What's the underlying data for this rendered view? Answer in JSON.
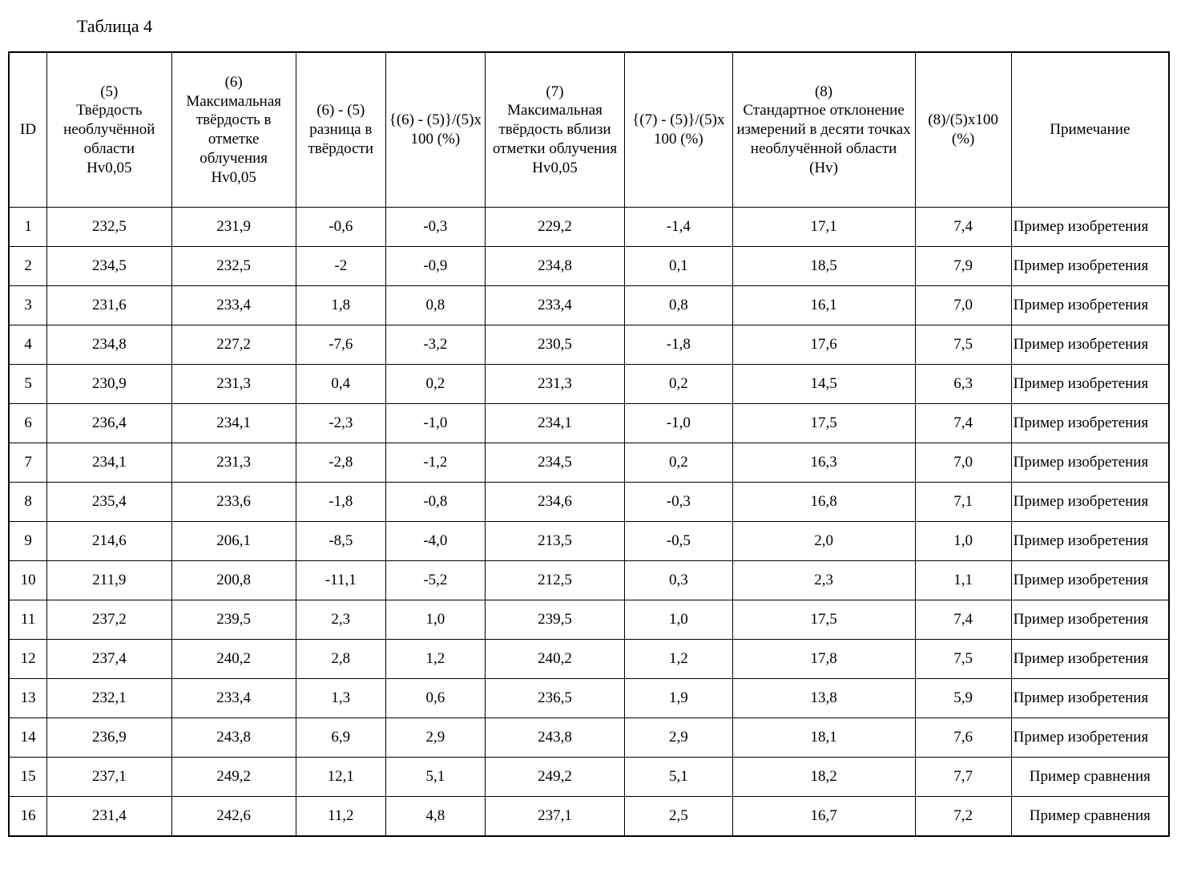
{
  "caption": "Таблица 4",
  "table": {
    "columns": [
      {
        "key": "id",
        "header": "ID",
        "class": "col-id"
      },
      {
        "key": "c5",
        "header": "(5)\nТвёрдость необлучённой области\nHv0,05",
        "class": "col-c5"
      },
      {
        "key": "c6",
        "header": "(6)\nМаксимальная твёрдость в отметке облучения\nHv0,05",
        "class": "col-c6"
      },
      {
        "key": "diff",
        "header": "(6) - (5)\nразница в твёрдости",
        "class": "col-diff"
      },
      {
        "key": "pct1",
        "header": "{(6) - (5)}/(5)x 100 (%)",
        "class": "col-pct1"
      },
      {
        "key": "c7",
        "header": "(7)\nМаксимальная твёрдость вблизи отметки облучения\nHv0,05",
        "class": "col-c7"
      },
      {
        "key": "pct2",
        "header": "{(7) - (5)}/(5)x 100 (%)",
        "class": "col-pct2"
      },
      {
        "key": "c8",
        "header": "(8)\nСтандартное отклонение измерений в десяти точках необлучённой области (Hv)",
        "class": "col-c8"
      },
      {
        "key": "pct3",
        "header": "(8)/(5)x100 (%)",
        "class": "col-pct3"
      },
      {
        "key": "note",
        "header": "Примечание",
        "class": "col-note"
      }
    ],
    "rows": [
      {
        "id": "1",
        "c5": "232,5",
        "c6": "231,9",
        "diff": "-0,6",
        "pct1": "-0,3",
        "c7": "229,2",
        "pct2": "-1,4",
        "c8": "17,1",
        "pct3": "7,4",
        "note": "Пример изобретения",
        "note_align": "left"
      },
      {
        "id": "2",
        "c5": "234,5",
        "c6": "232,5",
        "diff": "-2",
        "pct1": "-0,9",
        "c7": "234,8",
        "pct2": "0,1",
        "c8": "18,5",
        "pct3": "7,9",
        "note": "Пример изобретения",
        "note_align": "left"
      },
      {
        "id": "3",
        "c5": "231,6",
        "c6": "233,4",
        "diff": "1,8",
        "pct1": "0,8",
        "c7": "233,4",
        "pct2": "0,8",
        "c8": "16,1",
        "pct3": "7,0",
        "note": "Пример изобретения",
        "note_align": "left"
      },
      {
        "id": "4",
        "c5": "234,8",
        "c6": "227,2",
        "diff": "-7,6",
        "pct1": "-3,2",
        "c7": "230,5",
        "pct2": "-1,8",
        "c8": "17,6",
        "pct3": "7,5",
        "note": "Пример изобретения",
        "note_align": "left"
      },
      {
        "id": "5",
        "c5": "230,9",
        "c6": "231,3",
        "diff": "0,4",
        "pct1": "0,2",
        "c7": "231,3",
        "pct2": "0,2",
        "c8": "14,5",
        "pct3": "6,3",
        "note": "Пример изобретения",
        "note_align": "left"
      },
      {
        "id": "6",
        "c5": "236,4",
        "c6": "234,1",
        "diff": "-2,3",
        "pct1": "-1,0",
        "c7": "234,1",
        "pct2": "-1,0",
        "c8": "17,5",
        "pct3": "7,4",
        "note": "Пример изобретения",
        "note_align": "left"
      },
      {
        "id": "7",
        "c5": "234,1",
        "c6": "231,3",
        "diff": "-2,8",
        "pct1": "-1,2",
        "c7": "234,5",
        "pct2": "0,2",
        "c8": "16,3",
        "pct3": "7,0",
        "note": "Пример изобретения",
        "note_align": "left"
      },
      {
        "id": "8",
        "c5": "235,4",
        "c6": "233,6",
        "diff": "-1,8",
        "pct1": "-0,8",
        "c7": "234,6",
        "pct2": "-0,3",
        "c8": "16,8",
        "pct3": "7,1",
        "note": "Пример изобретения",
        "note_align": "left"
      },
      {
        "id": "9",
        "c5": "214,6",
        "c6": "206,1",
        "diff": "-8,5",
        "pct1": "-4,0",
        "c7": "213,5",
        "pct2": "-0,5",
        "c8": "2,0",
        "pct3": "1,0",
        "note": "Пример изобретения",
        "note_align": "left"
      },
      {
        "id": "10",
        "c5": "211,9",
        "c6": "200,8",
        "diff": "-11,1",
        "pct1": "-5,2",
        "c7": "212,5",
        "pct2": "0,3",
        "c8": "2,3",
        "pct3": "1,1",
        "note": "Пример изобретения",
        "note_align": "left"
      },
      {
        "id": "11",
        "c5": "237,2",
        "c6": "239,5",
        "diff": "2,3",
        "pct1": "1,0",
        "c7": "239,5",
        "pct2": "1,0",
        "c8": "17,5",
        "pct3": "7,4",
        "note": "Пример изобретения",
        "note_align": "left"
      },
      {
        "id": "12",
        "c5": "237,4",
        "c6": "240,2",
        "diff": "2,8",
        "pct1": "1,2",
        "c7": "240,2",
        "pct2": "1,2",
        "c8": "17,8",
        "pct3": "7,5",
        "note": "Пример изобретения",
        "note_align": "left"
      },
      {
        "id": "13",
        "c5": "232,1",
        "c6": "233,4",
        "diff": "1,3",
        "pct1": "0,6",
        "c7": "236,5",
        "pct2": "1,9",
        "c8": "13,8",
        "pct3": "5,9",
        "note": "Пример изобретения",
        "note_align": "left"
      },
      {
        "id": "14",
        "c5": "236,9",
        "c6": "243,8",
        "diff": "6,9",
        "pct1": "2,9",
        "c7": "243,8",
        "pct2": "2,9",
        "c8": "18,1",
        "pct3": "7,6",
        "note": "Пример изобретения",
        "note_align": "left"
      },
      {
        "id": "15",
        "c5": "237,1",
        "c6": "249,2",
        "diff": "12,1",
        "pct1": "5,1",
        "c7": "249,2",
        "pct2": "5,1",
        "c8": "18,2",
        "pct3": "7,7",
        "note": "Пример сравнения",
        "note_align": "center"
      },
      {
        "id": "16",
        "c5": "231,4",
        "c6": "242,6",
        "diff": "11,2",
        "pct1": "4,8",
        "c7": "237,1",
        "pct2": "2,5",
        "c8": "16,7",
        "pct3": "7,2",
        "note": "Пример сравнения",
        "note_align": "center"
      }
    ]
  }
}
